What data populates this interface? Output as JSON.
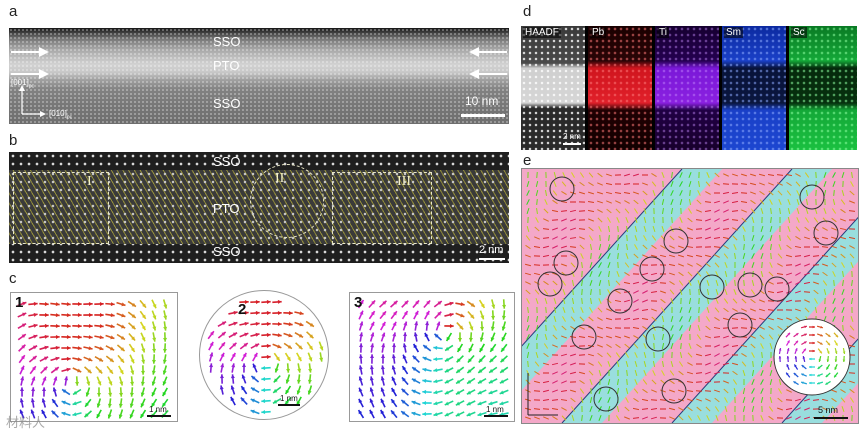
{
  "labels": {
    "a": "a",
    "b": "b",
    "c": "c",
    "d": "d",
    "e": "e"
  },
  "panel_a": {
    "top_layer": "SSO",
    "mid_layer": "PTO",
    "bottom_layer": "SSO",
    "axis_vertical": "[001]",
    "axis_vertical_sub": "pc",
    "axis_horizontal": "[010]",
    "axis_horizontal_sub": "pc",
    "scale": "10 nm"
  },
  "panel_b": {
    "top_layer": "SSO",
    "mid_layer": "PTO",
    "bottom_layer": "SSO",
    "region_1": "I",
    "region_2": "II",
    "region_3": "III",
    "scale": "2 nm"
  },
  "panel_c": {
    "num_1": "1",
    "num_2": "2",
    "num_3": "3",
    "scale_1": "1 nm",
    "scale_2": "1 nm",
    "scale_3": "1 nm"
  },
  "panel_d": {
    "maps": [
      {
        "label": "HAADF",
        "color": "#bdbdbd"
      },
      {
        "label": "Pb",
        "color": "#e0202a"
      },
      {
        "label": "Ti",
        "color": "#8a20e0"
      },
      {
        "label": "Sm",
        "color": "#2050e0"
      },
      {
        "label": "Sc",
        "color": "#20d040"
      }
    ],
    "scale": "2 nm"
  },
  "panel_e": {
    "scale": "5 nm"
  },
  "watermark": "材料人"
}
